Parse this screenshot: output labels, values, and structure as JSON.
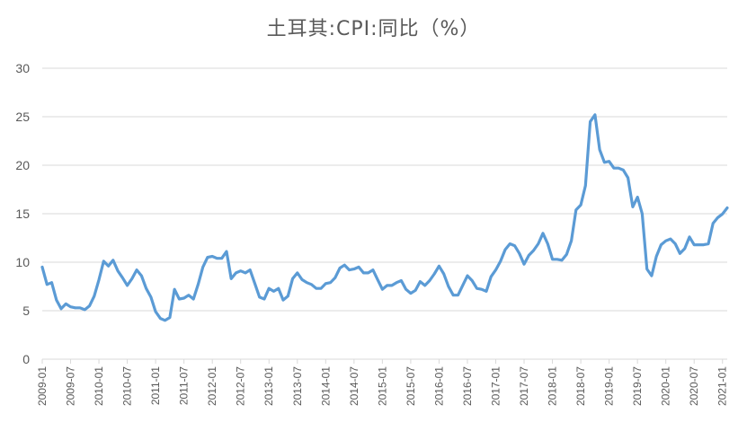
{
  "chart_data": {
    "type": "line",
    "title": "土耳其:CPI:同比（%）",
    "xlabel": "",
    "ylabel": "",
    "ylim": [
      0,
      30
    ],
    "yticks": [
      0,
      5,
      10,
      15,
      20,
      25,
      30
    ],
    "grid": "horizontal",
    "legend": "none",
    "line_color": "#5b9bd5",
    "x_tick_labels": [
      "2009-01",
      "2009-07",
      "2010-01",
      "2010-07",
      "2011-01",
      "2011-07",
      "2012-01",
      "2012-07",
      "2013-01",
      "2013-07",
      "2014-01",
      "2014-07",
      "2015-01",
      "2015-07",
      "2016-01",
      "2016-07",
      "2017-01",
      "2017-07",
      "2018-01",
      "2018-07",
      "2019-01",
      "2019-07",
      "2020-01",
      "2020-07",
      "2021-01"
    ],
    "x_start": "2009-01",
    "x_end": "2021-02",
    "series": [
      {
        "values": [
          9.5,
          7.7,
          7.9,
          6.1,
          5.2,
          5.7,
          5.4,
          5.3,
          5.3,
          5.1,
          5.5,
          6.5,
          8.2,
          10.1,
          9.6,
          10.2,
          9.1,
          8.4,
          7.6,
          8.3,
          9.2,
          8.6,
          7.3,
          6.4,
          4.9,
          4.2,
          4.0,
          4.3,
          7.2,
          6.2,
          6.3,
          6.6,
          6.2,
          7.7,
          9.5,
          10.5,
          10.6,
          10.4,
          10.4,
          11.1,
          8.3,
          8.9,
          9.1,
          8.9,
          9.2,
          7.8,
          6.4,
          6.2,
          7.3,
          7.0,
          7.3,
          6.1,
          6.5,
          8.3,
          8.9,
          8.2,
          7.9,
          7.7,
          7.3,
          7.3,
          7.8,
          7.9,
          8.4,
          9.4,
          9.7,
          9.2,
          9.3,
          9.5,
          8.9,
          8.9,
          9.2,
          8.2,
          7.2,
          7.6,
          7.6,
          7.9,
          8.1,
          7.2,
          6.8,
          7.1,
          8.0,
          7.6,
          8.1,
          8.8,
          9.6,
          8.8,
          7.5,
          6.6,
          6.6,
          7.6,
          8.6,
          8.1,
          7.3,
          7.2,
          7.0,
          8.5,
          9.2,
          10.1,
          11.3,
          11.9,
          11.7,
          10.9,
          9.8,
          10.7,
          11.2,
          11.9,
          12.98,
          11.9,
          10.3,
          10.3,
          10.2,
          10.8,
          12.2,
          15.4,
          15.9,
          17.9,
          24.5,
          25.2,
          21.6,
          20.3,
          20.4,
          19.7,
          19.7,
          19.5,
          18.7,
          15.7,
          16.7,
          15.0,
          9.3,
          8.6,
          10.6,
          11.8,
          12.2,
          12.4,
          11.9,
          10.9,
          11.4,
          12.6,
          11.8,
          11.8,
          11.8,
          11.9,
          14.0,
          14.6,
          14.97,
          15.6
        ]
      }
    ]
  }
}
